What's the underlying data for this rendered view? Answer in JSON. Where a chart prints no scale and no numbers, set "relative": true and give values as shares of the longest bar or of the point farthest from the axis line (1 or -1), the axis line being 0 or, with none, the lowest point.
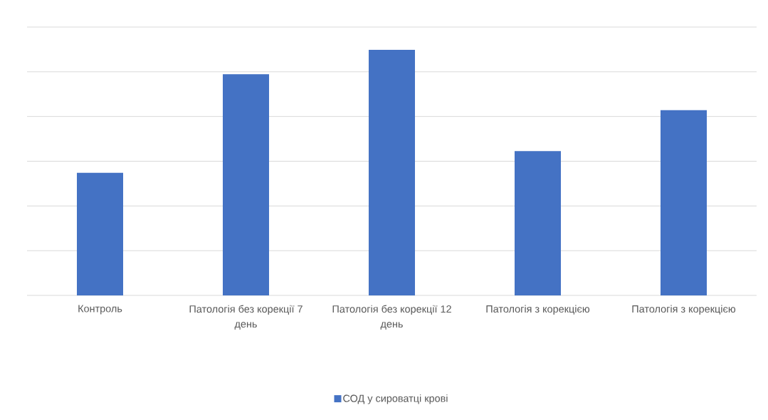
{
  "chart_data": {
    "type": "bar",
    "relative": true,
    "grid": "y",
    "legend": "bottom",
    "categories": [
      "Контроль",
      "Патологія без корекції 7 день",
      "Патологія без корекції 12 день",
      "Патологія з корекцією",
      "Патологія з корекцією"
    ],
    "series": [
      {
        "name": "СОД у сироватці крові",
        "color": "#4472c4",
        "values": [
          0.499,
          0.901,
          1,
          0.588,
          0.754
        ]
      }
    ]
  }
}
